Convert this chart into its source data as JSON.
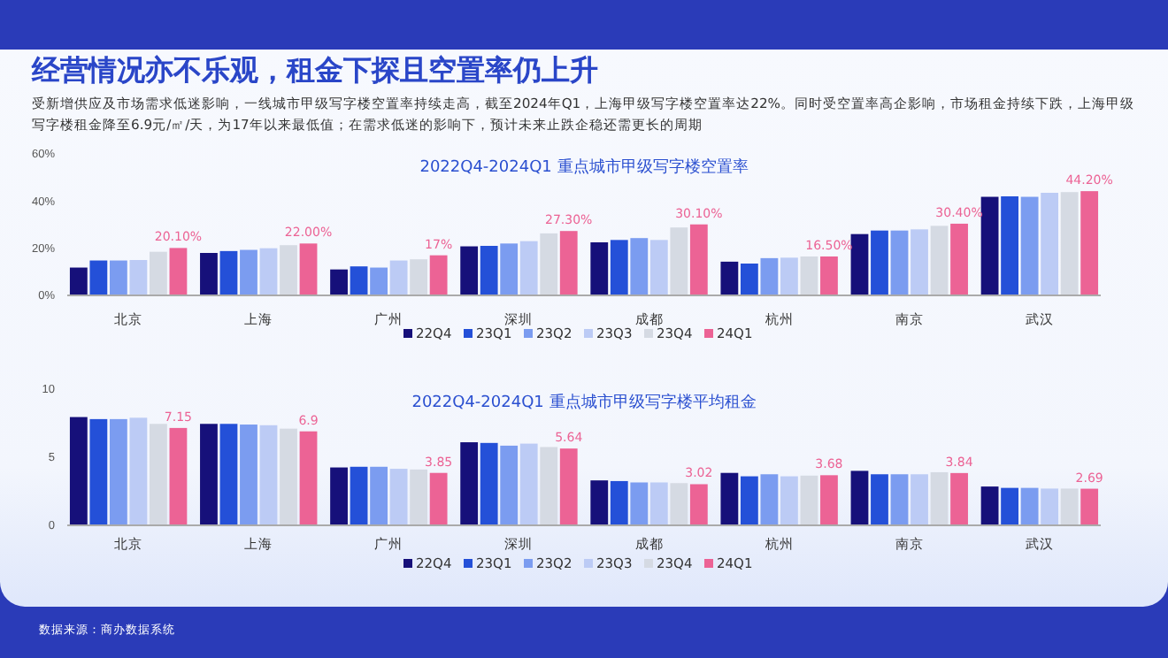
{
  "chart_data": [
    {
      "type": "bar",
      "title": "2022Q4-2024Q1 重点城市甲级写字楼空置率",
      "annotations": [
        "经营情况亦不乐观，租金下探且空置率仍上升",
        "受新增供应及市场需求低迷影响，一线城市甲级写字楼空置率持续走高，截至2024年Q1，上海甲级写字楼空置率达22%。同时受空置率高企影响，市场租金持续下跌，上海甲级写字楼租金降至6.9元/㎡/天，为17年以来最低值；在需求低迷的影响下，预计未来止跌企稳还需更长的周期"
      ],
      "categories": [
        "北京",
        "上海",
        "广州",
        "深圳",
        "成都",
        "杭州",
        "南京",
        "武汉"
      ],
      "series": [
        {
          "name": "22Q4",
          "color": "#16107a",
          "values": [
            11.8,
            18,
            11,
            20.8,
            22.5,
            14.3,
            26,
            41.8
          ]
        },
        {
          "name": "23Q1",
          "color": "#2450d8",
          "values": [
            14.8,
            18.8,
            12.3,
            21,
            23.5,
            13.5,
            27.5,
            42
          ]
        },
        {
          "name": "23Q2",
          "color": "#7b9cf0",
          "values": [
            14.8,
            19.3,
            11.8,
            22,
            24.3,
            15.8,
            27.5,
            41.8
          ]
        },
        {
          "name": "23Q3",
          "color": "#bccbf5",
          "values": [
            15,
            20,
            14.8,
            23,
            23.5,
            16,
            28,
            43.5
          ]
        },
        {
          "name": "23Q4",
          "color": "#d5dae3",
          "values": [
            18.5,
            21.3,
            15.3,
            26.3,
            28.8,
            16.5,
            29.5,
            43.8
          ]
        },
        {
          "name": "24Q1",
          "color": "#ec6395",
          "values": [
            20.1,
            22,
            17,
            27.3,
            30.1,
            16.5,
            30.4,
            44.2
          ],
          "value_labels": [
            "20.10%",
            "22.00%",
            "17%",
            "27.30%",
            "30.10%",
            "16.50%",
            "30.40%",
            "44.20%"
          ]
        }
      ],
      "ylim": [
        0,
        60
      ],
      "yticks": [
        {
          "value": 0,
          "label": "0%"
        },
        {
          "value": 20,
          "label": "20%"
        },
        {
          "value": 40,
          "label": "40%"
        },
        {
          "value": 60,
          "label": "60%"
        }
      ],
      "legend": "bottom"
    },
    {
      "type": "bar",
      "title": "2022Q4-2024Q1 重点城市甲级写字楼平均租金",
      "annotations": [
        "数据来源：商办数据系统"
      ],
      "categories": [
        "北京",
        "上海",
        "广州",
        "深圳",
        "成都",
        "杭州",
        "南京",
        "武汉"
      ],
      "series": [
        {
          "name": "22Q4",
          "color": "#16107a",
          "values": [
            7.95,
            7.45,
            4.25,
            6.1,
            3.3,
            3.85,
            4,
            2.85
          ]
        },
        {
          "name": "23Q1",
          "color": "#2450d8",
          "values": [
            7.8,
            7.45,
            4.3,
            6.05,
            3.25,
            3.6,
            3.75,
            2.75
          ]
        },
        {
          "name": "23Q2",
          "color": "#7b9cf0",
          "values": [
            7.8,
            7.4,
            4.3,
            5.85,
            3.15,
            3.75,
            3.75,
            2.75
          ]
        },
        {
          "name": "23Q3",
          "color": "#bccbf5",
          "values": [
            7.9,
            7.35,
            4.15,
            6,
            3.15,
            3.6,
            3.75,
            2.7
          ]
        },
        {
          "name": "23Q4",
          "color": "#d5dae3",
          "values": [
            7.45,
            7.1,
            4.1,
            5.75,
            3.1,
            3.65,
            3.9,
            2.7
          ]
        },
        {
          "name": "24Q1",
          "color": "#ec6395",
          "values": [
            7.15,
            6.9,
            3.85,
            5.64,
            3.02,
            3.68,
            3.84,
            2.69
          ],
          "value_labels": [
            "7.15",
            "6.9",
            "3.85",
            "5.64",
            "3.02",
            "3.68",
            "3.84",
            "2.69"
          ]
        }
      ],
      "ylim": [
        0,
        10
      ],
      "yticks": [
        0,
        5,
        10
      ],
      "legend": "bottom"
    }
  ]
}
